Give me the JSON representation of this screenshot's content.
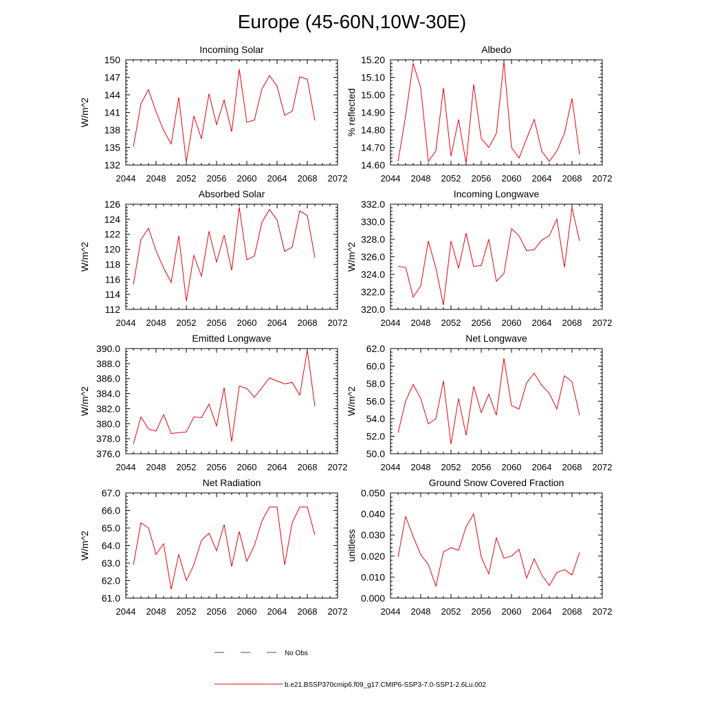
{
  "page": {
    "title": "Europe (45-60N,10W-30E)"
  },
  "legend": {
    "obs_label": "No Obs",
    "model_label": "b.e21.BSSP370cmip6.f09_g17.CMIP6-SSP3-7.0-SSP1-2.6Lu.002",
    "obs_color": "#4040b0",
    "model_color": "#e8000b"
  },
  "chart_data": [
    {
      "type": "line",
      "title": "Incoming Solar",
      "ylabel": "W/m^2",
      "xlim": [
        2044,
        2072
      ],
      "ylim": [
        132,
        150
      ],
      "xticks": [
        2044,
        2048,
        2052,
        2056,
        2060,
        2064,
        2068,
        2072
      ],
      "yticks": [
        132,
        135,
        138,
        141,
        144,
        147,
        150
      ],
      "ytick_labels": [
        "132",
        "135",
        "138",
        "141",
        "144",
        "147",
        "150"
      ],
      "series": [
        {
          "color": "#e8000b",
          "x": [
            2045,
            2046,
            2047,
            2048,
            2049,
            2050,
            2051,
            2052,
            2053,
            2054,
            2055,
            2056,
            2057,
            2058,
            2059,
            2060,
            2061,
            2062,
            2063,
            2064,
            2065,
            2066,
            2067,
            2068,
            2069
          ],
          "y": [
            135.1,
            142.5,
            144.9,
            141.1,
            137.9,
            135.6,
            143.6,
            132.5,
            140.4,
            136.5,
            144.2,
            138.9,
            143.1,
            137.7,
            148.4,
            139.3,
            139.7,
            145.0,
            147.3,
            145.5,
            140.5,
            141.2,
            147.1,
            146.7,
            139.6
          ]
        }
      ]
    },
    {
      "type": "line",
      "title": "Albedo",
      "ylabel": "% reflected",
      "xlim": [
        2044,
        2072
      ],
      "ylim": [
        14.6,
        15.2
      ],
      "xticks": [
        2044,
        2048,
        2052,
        2056,
        2060,
        2064,
        2068,
        2072
      ],
      "yticks": [
        14.6,
        14.7,
        14.8,
        14.9,
        15.0,
        15.1,
        15.2
      ],
      "ytick_labels": [
        "14.60",
        "14.70",
        "14.80",
        "14.90",
        "15.00",
        "15.10",
        "15.20"
      ],
      "series": [
        {
          "color": "#e8000b",
          "x": [
            2045,
            2046,
            2047,
            2048,
            2049,
            2050,
            2051,
            2052,
            2053,
            2054,
            2055,
            2056,
            2057,
            2058,
            2059,
            2060,
            2061,
            2062,
            2063,
            2064,
            2065,
            2066,
            2067,
            2068,
            2069
          ],
          "y": [
            14.62,
            14.88,
            15.18,
            15.04,
            14.62,
            14.68,
            15.04,
            14.65,
            14.86,
            14.61,
            15.06,
            14.75,
            14.7,
            14.78,
            15.19,
            14.7,
            14.64,
            14.75,
            14.86,
            14.68,
            14.62,
            14.68,
            14.78,
            14.98,
            14.66
          ]
        }
      ]
    },
    {
      "type": "line",
      "title": "Absorbed Solar",
      "ylabel": "W/m^2",
      "xlim": [
        2044,
        2072
      ],
      "ylim": [
        112,
        126
      ],
      "xticks": [
        2044,
        2048,
        2052,
        2056,
        2060,
        2064,
        2068,
        2072
      ],
      "yticks": [
        112,
        114,
        116,
        118,
        120,
        122,
        124,
        126
      ],
      "ytick_labels": [
        "112",
        "114",
        "116",
        "118",
        "120",
        "122",
        "124",
        "126"
      ],
      "series": [
        {
          "color": "#e8000b",
          "x": [
            2045,
            2046,
            2047,
            2048,
            2049,
            2050,
            2051,
            2052,
            2053,
            2054,
            2055,
            2056,
            2057,
            2058,
            2059,
            2060,
            2061,
            2062,
            2063,
            2064,
            2065,
            2066,
            2067,
            2068,
            2069
          ],
          "y": [
            115.3,
            121.3,
            122.8,
            119.8,
            117.5,
            115.6,
            121.8,
            113.1,
            119.2,
            116.4,
            122.4,
            118.3,
            121.9,
            117.2,
            125.6,
            118.6,
            119.1,
            123.6,
            125.3,
            123.9,
            119.7,
            120.3,
            125.1,
            124.5,
            118.9
          ]
        }
      ]
    },
    {
      "type": "line",
      "title": "Incoming Longwave",
      "ylabel": "W/m^2",
      "xlim": [
        2044,
        2072
      ],
      "ylim": [
        320,
        332
      ],
      "xticks": [
        2044,
        2048,
        2052,
        2056,
        2060,
        2064,
        2068,
        2072
      ],
      "yticks": [
        320,
        322,
        324,
        326,
        328,
        330,
        332
      ],
      "ytick_labels": [
        "320.0",
        "322.0",
        "324.0",
        "326.0",
        "328.0",
        "330.0",
        "332.0"
      ],
      "series": [
        {
          "color": "#e8000b",
          "x": [
            2045,
            2046,
            2047,
            2048,
            2049,
            2050,
            2051,
            2052,
            2053,
            2054,
            2055,
            2056,
            2057,
            2058,
            2059,
            2060,
            2061,
            2062,
            2063,
            2064,
            2065,
            2066,
            2067,
            2068,
            2069
          ],
          "y": [
            324.9,
            324.8,
            321.4,
            322.7,
            327.8,
            324.7,
            320.5,
            327.8,
            324.7,
            328.7,
            324.9,
            325.0,
            328.0,
            323.2,
            324.1,
            329.2,
            328.4,
            326.7,
            326.8,
            327.9,
            328.4,
            330.3,
            324.8,
            331.6,
            327.8
          ]
        }
      ]
    },
    {
      "type": "line",
      "title": "Emitted Longwave",
      "ylabel": "W/m^2",
      "xlim": [
        2044,
        2072
      ],
      "ylim": [
        376,
        390
      ],
      "xticks": [
        2044,
        2048,
        2052,
        2056,
        2060,
        2064,
        2068,
        2072
      ],
      "yticks": [
        376,
        378,
        380,
        382,
        384,
        386,
        388,
        390
      ],
      "ytick_labels": [
        "376.0",
        "378.0",
        "380.0",
        "382.0",
        "384.0",
        "386.0",
        "388.0",
        "390.0"
      ],
      "series": [
        {
          "color": "#e8000b",
          "x": [
            2045,
            2046,
            2047,
            2048,
            2049,
            2050,
            2051,
            2052,
            2053,
            2054,
            2055,
            2056,
            2057,
            2058,
            2059,
            2060,
            2061,
            2062,
            2063,
            2064,
            2065,
            2066,
            2067,
            2068,
            2069
          ],
          "y": [
            377.3,
            380.9,
            379.3,
            379.0,
            381.2,
            378.7,
            378.8,
            378.9,
            380.9,
            380.8,
            382.6,
            379.7,
            384.8,
            377.6,
            385.0,
            384.7,
            383.5,
            384.8,
            386.1,
            385.7,
            385.3,
            385.5,
            383.8,
            389.8,
            382.3
          ]
        }
      ]
    },
    {
      "type": "line",
      "title": "Net Longwave",
      "ylabel": "W/m^2",
      "xlim": [
        2044,
        2072
      ],
      "ylim": [
        50,
        62
      ],
      "xticks": [
        2044,
        2048,
        2052,
        2056,
        2060,
        2064,
        2068,
        2072
      ],
      "yticks": [
        50,
        52,
        54,
        56,
        58,
        60,
        62
      ],
      "ytick_labels": [
        "50.0",
        "52.0",
        "54.0",
        "56.0",
        "58.0",
        "60.0",
        "62.0"
      ],
      "series": [
        {
          "color": "#e8000b",
          "x": [
            2045,
            2046,
            2047,
            2048,
            2049,
            2050,
            2051,
            2052,
            2053,
            2054,
            2055,
            2056,
            2057,
            2058,
            2059,
            2060,
            2061,
            2062,
            2063,
            2064,
            2065,
            2066,
            2067,
            2068,
            2069
          ],
          "y": [
            52.4,
            56.0,
            57.9,
            56.3,
            53.4,
            54.0,
            58.3,
            51.1,
            56.3,
            52.1,
            57.7,
            54.7,
            56.8,
            54.4,
            60.9,
            55.5,
            55.1,
            58.1,
            59.2,
            57.8,
            56.9,
            55.1,
            58.9,
            58.2,
            54.4
          ]
        }
      ]
    },
    {
      "type": "line",
      "title": "Net Radiation",
      "ylabel": "W/m^2",
      "xlim": [
        2044,
        2072
      ],
      "ylim": [
        61,
        67
      ],
      "xticks": [
        2044,
        2048,
        2052,
        2056,
        2060,
        2064,
        2068,
        2072
      ],
      "yticks": [
        61,
        62,
        63,
        64,
        65,
        66,
        67
      ],
      "ytick_labels": [
        "61.0",
        "62.0",
        "63.0",
        "64.0",
        "65.0",
        "66.0",
        "67.0"
      ],
      "series": [
        {
          "color": "#e8000b",
          "x": [
            2045,
            2046,
            2047,
            2048,
            2049,
            2050,
            2051,
            2052,
            2053,
            2054,
            2055,
            2056,
            2057,
            2058,
            2059,
            2060,
            2061,
            2062,
            2063,
            2064,
            2065,
            2066,
            2067,
            2068,
            2069
          ],
          "y": [
            62.9,
            65.3,
            65.0,
            63.5,
            64.1,
            61.5,
            63.5,
            62.0,
            62.9,
            64.3,
            64.7,
            63.7,
            65.2,
            62.8,
            64.8,
            63.1,
            64.0,
            65.4,
            66.2,
            66.2,
            62.9,
            65.3,
            66.2,
            66.2,
            64.6
          ]
        }
      ]
    },
    {
      "type": "line",
      "title": "Ground Snow Covered Fraction",
      "ylabel": "unitless",
      "xlim": [
        2044,
        2072
      ],
      "ylim": [
        0,
        0.05
      ],
      "xticks": [
        2044,
        2048,
        2052,
        2056,
        2060,
        2064,
        2068,
        2072
      ],
      "yticks": [
        0,
        0.01,
        0.02,
        0.03,
        0.04,
        0.05
      ],
      "ytick_labels": [
        "0.000",
        "0.010",
        "0.020",
        "0.030",
        "0.040",
        "0.050"
      ],
      "series": [
        {
          "color": "#e8000b",
          "x": [
            2045,
            2046,
            2047,
            2048,
            2049,
            2050,
            2051,
            2052,
            2053,
            2054,
            2055,
            2056,
            2057,
            2058,
            2059,
            2060,
            2061,
            2062,
            2063,
            2064,
            2065,
            2066,
            2067,
            2068,
            2069
          ],
          "y": [
            0.0195,
            0.0388,
            0.0292,
            0.0206,
            0.016,
            0.0057,
            0.022,
            0.024,
            0.0227,
            0.034,
            0.04,
            0.0195,
            0.0115,
            0.0287,
            0.019,
            0.02,
            0.0232,
            0.0095,
            0.0187,
            0.011,
            0.006,
            0.0122,
            0.0135,
            0.011,
            0.0217
          ]
        }
      ]
    }
  ]
}
